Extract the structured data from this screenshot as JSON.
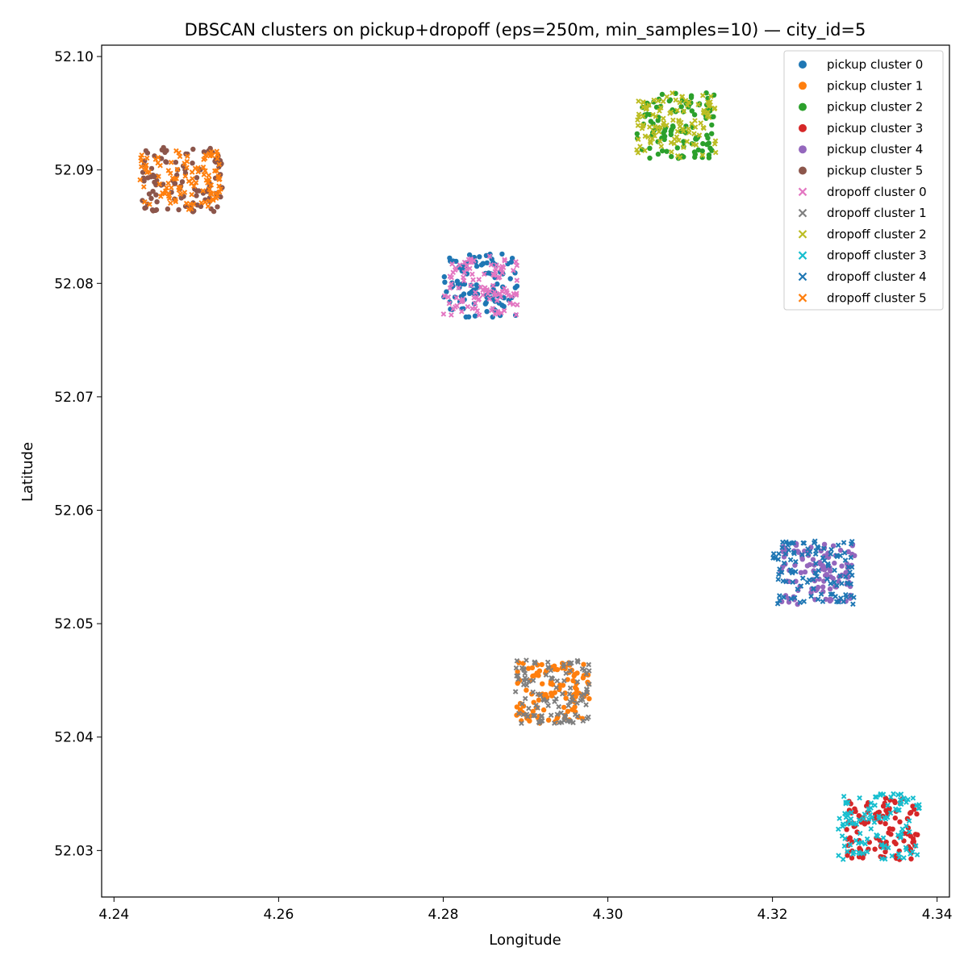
{
  "chart_data": {
    "type": "scatter",
    "title": "DBSCAN clusters on pickup+dropoff (eps=250m, min_samples=10) — city_id=5",
    "xlabel": "Longitude",
    "ylabel": "Latitude",
    "xlim": [
      4.2385,
      4.3415
    ],
    "ylim": [
      52.0259,
      52.101
    ],
    "xticks": [
      "4.24",
      "4.26",
      "4.28",
      "4.30",
      "4.32",
      "4.34"
    ],
    "yticks": [
      "52.03",
      "52.04",
      "52.05",
      "52.06",
      "52.07",
      "52.08",
      "52.09",
      "52.10"
    ],
    "grid": false,
    "legend_position": "top-right",
    "series": [
      {
        "name": "pickup cluster 0",
        "kind": "pickup",
        "color": "#1f77b4",
        "count": 110,
        "x_range": [
          4.28,
          4.289
        ],
        "y_range": [
          52.077,
          52.0826
        ]
      },
      {
        "name": "pickup cluster 1",
        "kind": "pickup",
        "color": "#ff7f0e",
        "count": 110,
        "x_range": [
          4.2888,
          4.2978
        ],
        "y_range": [
          52.0412,
          52.0466
        ]
      },
      {
        "name": "pickup cluster 2",
        "kind": "pickup",
        "color": "#2ca02c",
        "count": 110,
        "x_range": [
          4.3035,
          4.313
        ],
        "y_range": [
          52.091,
          52.0968
        ]
      },
      {
        "name": "pickup cluster 3",
        "kind": "pickup",
        "color": "#d62728",
        "count": 110,
        "x_range": [
          4.329,
          4.3378
        ],
        "y_range": [
          52.0292,
          52.0348
        ]
      },
      {
        "name": "pickup cluster 4",
        "kind": "pickup",
        "color": "#9467bd",
        "count": 110,
        "x_range": [
          4.321,
          4.33
        ],
        "y_range": [
          52.0517,
          52.0572
        ]
      },
      {
        "name": "pickup cluster 5",
        "kind": "pickup",
        "color": "#8c564b",
        "count": 110,
        "x_range": [
          4.2433,
          4.2533
        ],
        "y_range": [
          52.0863,
          52.092
        ]
      },
      {
        "name": "dropoff cluster 0",
        "kind": "dropoff",
        "color": "#e377c2",
        "count": 110,
        "x_range": [
          4.28,
          4.289
        ],
        "y_range": [
          52.0772,
          52.0826
        ]
      },
      {
        "name": "dropoff cluster 1",
        "kind": "dropoff",
        "color": "#7f7f7f",
        "count": 110,
        "x_range": [
          4.2885,
          4.298
        ],
        "y_range": [
          52.0412,
          52.0468
        ]
      },
      {
        "name": "dropoff cluster 2",
        "kind": "dropoff",
        "color": "#bcbd22",
        "count": 110,
        "x_range": [
          4.3035,
          4.3132
        ],
        "y_range": [
          52.091,
          52.0968
        ]
      },
      {
        "name": "dropoff cluster 3",
        "kind": "dropoff",
        "color": "#17becf",
        "count": 110,
        "x_range": [
          4.328,
          4.338
        ],
        "y_range": [
          52.0292,
          52.035
        ]
      },
      {
        "name": "dropoff cluster 4",
        "kind": "dropoff",
        "color": "#1f77b4",
        "count": 110,
        "x_range": [
          4.32,
          4.33
        ],
        "y_range": [
          52.0517,
          52.0573
        ]
      },
      {
        "name": "dropoff cluster 5",
        "kind": "dropoff",
        "color": "#ff7f0e",
        "count": 110,
        "x_range": [
          4.243,
          4.253
        ],
        "y_range": [
          52.0865,
          52.0918
        ]
      }
    ]
  }
}
